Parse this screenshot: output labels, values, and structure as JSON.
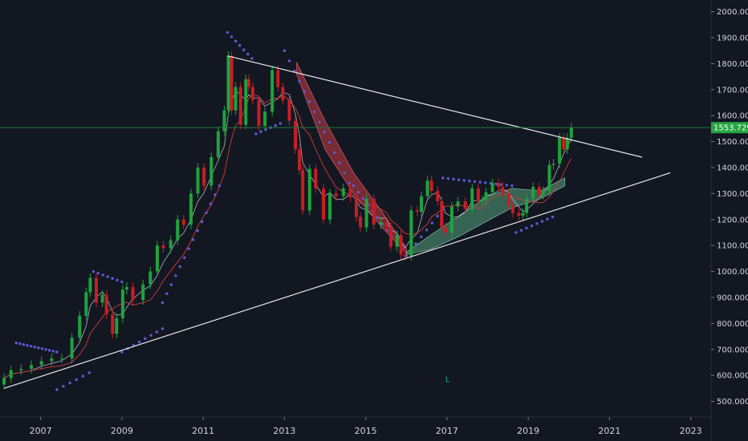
{
  "chart_data": {
    "type": "candlestick",
    "title": "",
    "xlabel": "",
    "ylabel": "",
    "x_ticks": [
      "2007",
      "2009",
      "2011",
      "2013",
      "2015",
      "2017",
      "2019",
      "2021",
      "2023"
    ],
    "y_ticks": [
      "500.000",
      "600.000",
      "700.000",
      "800.000",
      "900.000",
      "1000.000",
      "1100.000",
      "1200.000",
      "1300.000",
      "1400.000",
      "1500.000",
      "1600.000",
      "1700.000",
      "1800.000",
      "1900.000",
      "2000.000"
    ],
    "xlim": [
      2006.0,
      2023.5
    ],
    "ylim": [
      440,
      2045
    ],
    "grid": false,
    "last_price": 1553.729,
    "last_price_label": "1553.729",
    "marker_label": "L",
    "marker_point": [
      2017.0,
      575
    ],
    "series_monthly_close": [
      [
        2006.1,
        590
      ],
      [
        2006.27,
        620
      ],
      [
        2006.52,
        625
      ],
      [
        2006.77,
        640
      ],
      [
        2007.02,
        655
      ],
      [
        2007.27,
        665
      ],
      [
        2007.52,
        665
      ],
      [
        2007.77,
        745
      ],
      [
        2007.96,
        830
      ],
      [
        2008.12,
        920
      ],
      [
        2008.22,
        975
      ],
      [
        2008.37,
        880
      ],
      [
        2008.52,
        910
      ],
      [
        2008.62,
        835
      ],
      [
        2008.77,
        760
      ],
      [
        2008.87,
        820
      ],
      [
        2009.02,
        930
      ],
      [
        2009.12,
        940
      ],
      [
        2009.27,
        890
      ],
      [
        2009.52,
        950
      ],
      [
        2009.7,
        1000
      ],
      [
        2009.87,
        1100
      ],
      [
        2010.02,
        1090
      ],
      [
        2010.2,
        1120
      ],
      [
        2010.37,
        1200
      ],
      [
        2010.52,
        1180
      ],
      [
        2010.7,
        1300
      ],
      [
        2010.87,
        1400
      ],
      [
        2011.02,
        1330
      ],
      [
        2011.2,
        1440
      ],
      [
        2011.37,
        1540
      ],
      [
        2011.52,
        1620
      ],
      [
        2011.62,
        1830
      ],
      [
        2011.7,
        1620
      ],
      [
        2011.8,
        1710
      ],
      [
        2011.92,
        1565
      ],
      [
        2012.05,
        1740
      ],
      [
        2012.12,
        1710
      ],
      [
        2012.22,
        1660
      ],
      [
        2012.37,
        1560
      ],
      [
        2012.52,
        1615
      ],
      [
        2012.7,
        1775
      ],
      [
        2012.84,
        1710
      ],
      [
        2012.96,
        1660
      ],
      [
        2013.12,
        1580
      ],
      [
        2013.27,
        1470
      ],
      [
        2013.37,
        1390
      ],
      [
        2013.45,
        1235
      ],
      [
        2013.62,
        1395
      ],
      [
        2013.77,
        1320
      ],
      [
        2013.96,
        1200
      ],
      [
        2014.12,
        1300
      ],
      [
        2014.27,
        1290
      ],
      [
        2014.45,
        1320
      ],
      [
        2014.62,
        1285
      ],
      [
        2014.77,
        1210
      ],
      [
        2014.87,
        1170
      ],
      [
        2015.02,
        1280
      ],
      [
        2015.2,
        1180
      ],
      [
        2015.37,
        1190
      ],
      [
        2015.52,
        1170
      ],
      [
        2015.62,
        1095
      ],
      [
        2015.77,
        1140
      ],
      [
        2015.87,
        1065
      ],
      [
        2015.96,
        1060
      ],
      [
        2016.12,
        1235
      ],
      [
        2016.27,
        1230
      ],
      [
        2016.37,
        1290
      ],
      [
        2016.52,
        1350
      ],
      [
        2016.62,
        1310
      ],
      [
        2016.77,
        1270
      ],
      [
        2016.87,
        1170
      ],
      [
        2016.96,
        1150
      ],
      [
        2017.12,
        1250
      ],
      [
        2017.27,
        1270
      ],
      [
        2017.45,
        1240
      ],
      [
        2017.62,
        1320
      ],
      [
        2017.77,
        1270
      ],
      [
        2017.87,
        1275
      ],
      [
        2017.96,
        1305
      ],
      [
        2018.12,
        1340
      ],
      [
        2018.27,
        1325
      ],
      [
        2018.37,
        1300
      ],
      [
        2018.52,
        1255
      ],
      [
        2018.62,
        1225
      ],
      [
        2018.77,
        1215
      ],
      [
        2018.87,
        1225
      ],
      [
        2018.96,
        1280
      ],
      [
        2019.12,
        1325
      ],
      [
        2019.27,
        1295
      ],
      [
        2019.37,
        1310
      ],
      [
        2019.52,
        1410
      ],
      [
        2019.62,
        1415
      ],
      [
        2019.77,
        1515
      ],
      [
        2019.87,
        1470
      ],
      [
        2019.96,
        1515
      ],
      [
        2020.06,
        1554
      ]
    ],
    "trendlines": [
      {
        "from": [
          2011.6,
          1830
        ],
        "to": [
          2021.8,
          1440
        ]
      },
      {
        "from": [
          2006.1,
          550
        ],
        "to": [
          2022.5,
          1380
        ]
      }
    ]
  }
}
